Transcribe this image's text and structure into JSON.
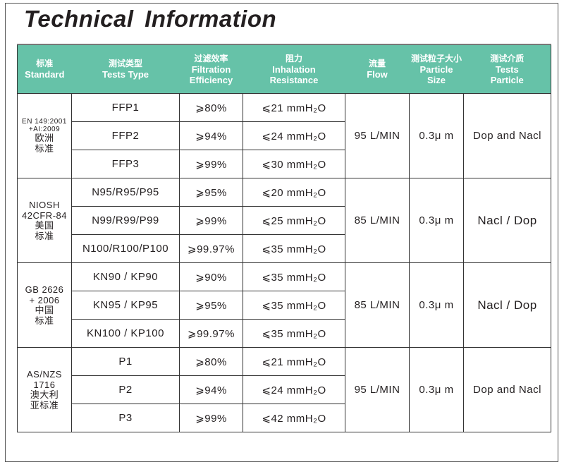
{
  "title": "Technical Information",
  "header_color": "#66c2a8",
  "columns": [
    {
      "cn": "标准",
      "en": [
        "Standard"
      ]
    },
    {
      "cn": "测试类型",
      "en": [
        "Tests  Type"
      ]
    },
    {
      "cn": "过滤效率",
      "en": [
        "Filtration",
        "Efficiency"
      ]
    },
    {
      "cn": "阻力",
      "en": [
        "Inhalation",
        "Resistance"
      ]
    },
    {
      "cn": "流量",
      "en": [
        "Flow"
      ]
    },
    {
      "cn": "测试粒子大小",
      "en": [
        "Particle",
        "Size"
      ]
    },
    {
      "cn": "测试介质",
      "en": [
        "Tests",
        "Particle"
      ]
    }
  ],
  "groups": [
    {
      "standard": [
        "EN 149:2001",
        "+AI:2009"
      ],
      "standard_cn": [
        "欧洲",
        "标准"
      ],
      "flow": "95 L/MIN",
      "size": "0.3μ m",
      "particle": "Dop and Nacl",
      "rows": [
        {
          "type": "FFP1",
          "eff": "⩾80%",
          "res": "⩽21  mmH₂O"
        },
        {
          "type": "FFP2",
          "eff": "⩾94%",
          "res": "⩽24  mmH₂O"
        },
        {
          "type": "FFP3",
          "eff": "⩾99%",
          "res": "⩽30  mmH₂O"
        }
      ]
    },
    {
      "standard": [
        "NIOSH",
        "42CFR-84"
      ],
      "standard_cn": [
        "美国",
        "标准"
      ],
      "flow": "85 L/MIN",
      "size": "0.3μ m",
      "particle": "Nacl / Dop",
      "rows": [
        {
          "type": "N95/R95/P95",
          "eff": "⩾95%",
          "res": "⩽20  mmH₂O"
        },
        {
          "type": "N99/R99/P99",
          "eff": "⩾99%",
          "res": "⩽25  mmH₂O"
        },
        {
          "type": "N100/R100/P100",
          "eff": "⩾99.97%",
          "res": "⩽35  mmH₂O"
        }
      ]
    },
    {
      "standard": [
        "GB 2626",
        "+ 2006"
      ],
      "standard_cn": [
        "中国",
        "标准"
      ],
      "flow": "85 L/MIN",
      "size": "0.3μ m",
      "particle": "Nacl / Dop",
      "rows": [
        {
          "type": "KN90 / KP90",
          "eff": "⩾90%",
          "res": "⩽35  mmH₂O"
        },
        {
          "type": "KN95 / KP95",
          "eff": "⩾95%",
          "res": "⩽35  mmH₂O"
        },
        {
          "type": "KN100 / KP100",
          "eff": "⩾99.97%",
          "res": "⩽35  mmH₂O"
        }
      ]
    },
    {
      "standard": [
        "AS/NZS",
        "1716"
      ],
      "standard_cn": [
        "澳大利",
        "亚标准"
      ],
      "flow": "95 L/MIN",
      "size": "0.3μ m",
      "particle": "Dop and Nacl",
      "rows": [
        {
          "type": "P1",
          "eff": "⩾80%",
          "res": "⩽21  mmH₂O"
        },
        {
          "type": "P2",
          "eff": "⩾94%",
          "res": "⩽24  mmH₂O"
        },
        {
          "type": "P3",
          "eff": "⩾99%",
          "res": "⩽42  mmH₂O"
        }
      ]
    }
  ]
}
